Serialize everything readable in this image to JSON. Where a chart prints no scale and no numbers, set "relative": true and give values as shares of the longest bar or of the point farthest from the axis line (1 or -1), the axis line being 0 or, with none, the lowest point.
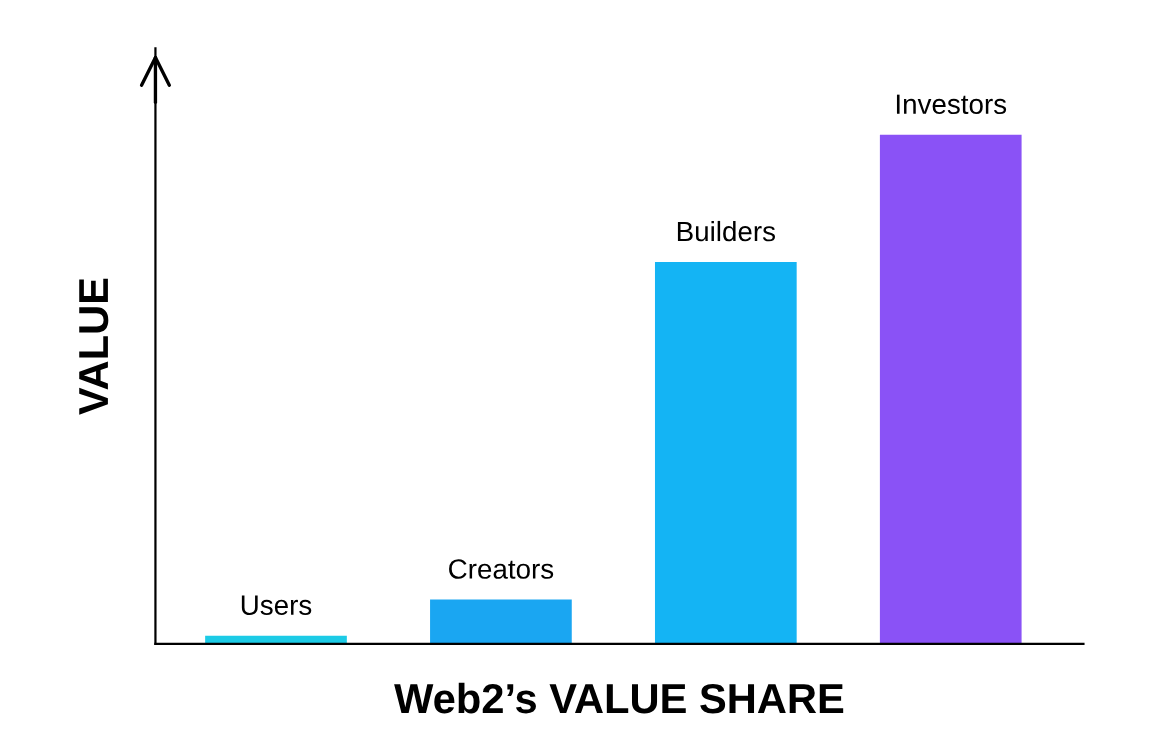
{
  "chart_data": {
    "type": "bar",
    "xlabel": "Web2’s VALUE SHARE",
    "ylabel": "VALUE",
    "relative": true,
    "categories": [
      "Users",
      "Creators",
      "Builders",
      "Investors"
    ],
    "values": [
      0.016,
      0.087,
      0.75,
      1
    ],
    "colors": [
      "#1ccbe6",
      "#1aa6f2",
      "#14b4f4",
      "#8a52f6"
    ]
  }
}
